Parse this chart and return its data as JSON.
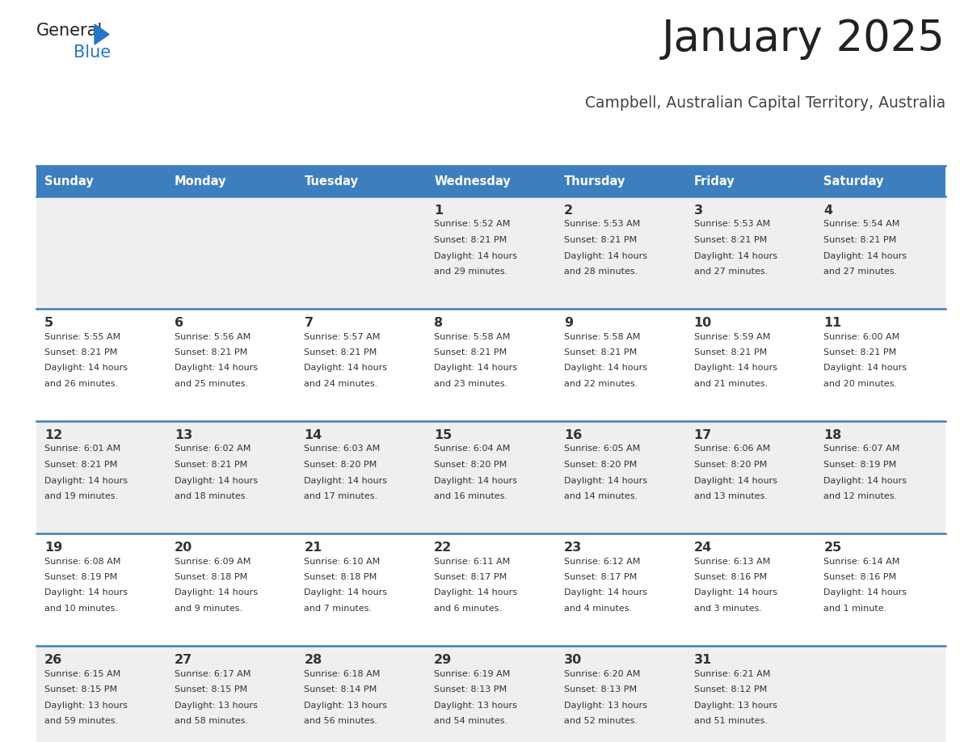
{
  "title": "January 2025",
  "subtitle": "Campbell, Australian Capital Territory, Australia",
  "header_bg": "#3d7ebf",
  "header_text": "#ffffff",
  "row_bg_odd": "#efefef",
  "row_bg_even": "#ffffff",
  "cell_text": "#333333",
  "days_of_week": [
    "Sunday",
    "Monday",
    "Tuesday",
    "Wednesday",
    "Thursday",
    "Friday",
    "Saturday"
  ],
  "weeks": [
    [
      {
        "day": "",
        "sunrise": "",
        "sunset": "",
        "daylight": ""
      },
      {
        "day": "",
        "sunrise": "",
        "sunset": "",
        "daylight": ""
      },
      {
        "day": "",
        "sunrise": "",
        "sunset": "",
        "daylight": ""
      },
      {
        "day": "1",
        "sunrise": "5:52 AM",
        "sunset": "8:21 PM",
        "daylight": "14 hours and 29 minutes."
      },
      {
        "day": "2",
        "sunrise": "5:53 AM",
        "sunset": "8:21 PM",
        "daylight": "14 hours and 28 minutes."
      },
      {
        "day": "3",
        "sunrise": "5:53 AM",
        "sunset": "8:21 PM",
        "daylight": "14 hours and 27 minutes."
      },
      {
        "day": "4",
        "sunrise": "5:54 AM",
        "sunset": "8:21 PM",
        "daylight": "14 hours and 27 minutes."
      }
    ],
    [
      {
        "day": "5",
        "sunrise": "5:55 AM",
        "sunset": "8:21 PM",
        "daylight": "14 hours and 26 minutes."
      },
      {
        "day": "6",
        "sunrise": "5:56 AM",
        "sunset": "8:21 PM",
        "daylight": "14 hours and 25 minutes."
      },
      {
        "day": "7",
        "sunrise": "5:57 AM",
        "sunset": "8:21 PM",
        "daylight": "14 hours and 24 minutes."
      },
      {
        "day": "8",
        "sunrise": "5:58 AM",
        "sunset": "8:21 PM",
        "daylight": "14 hours and 23 minutes."
      },
      {
        "day": "9",
        "sunrise": "5:58 AM",
        "sunset": "8:21 PM",
        "daylight": "14 hours and 22 minutes."
      },
      {
        "day": "10",
        "sunrise": "5:59 AM",
        "sunset": "8:21 PM",
        "daylight": "14 hours and 21 minutes."
      },
      {
        "day": "11",
        "sunrise": "6:00 AM",
        "sunset": "8:21 PM",
        "daylight": "14 hours and 20 minutes."
      }
    ],
    [
      {
        "day": "12",
        "sunrise": "6:01 AM",
        "sunset": "8:21 PM",
        "daylight": "14 hours and 19 minutes."
      },
      {
        "day": "13",
        "sunrise": "6:02 AM",
        "sunset": "8:21 PM",
        "daylight": "14 hours and 18 minutes."
      },
      {
        "day": "14",
        "sunrise": "6:03 AM",
        "sunset": "8:20 PM",
        "daylight": "14 hours and 17 minutes."
      },
      {
        "day": "15",
        "sunrise": "6:04 AM",
        "sunset": "8:20 PM",
        "daylight": "14 hours and 16 minutes."
      },
      {
        "day": "16",
        "sunrise": "6:05 AM",
        "sunset": "8:20 PM",
        "daylight": "14 hours and 14 minutes."
      },
      {
        "day": "17",
        "sunrise": "6:06 AM",
        "sunset": "8:20 PM",
        "daylight": "14 hours and 13 minutes."
      },
      {
        "day": "18",
        "sunrise": "6:07 AM",
        "sunset": "8:19 PM",
        "daylight": "14 hours and 12 minutes."
      }
    ],
    [
      {
        "day": "19",
        "sunrise": "6:08 AM",
        "sunset": "8:19 PM",
        "daylight": "14 hours and 10 minutes."
      },
      {
        "day": "20",
        "sunrise": "6:09 AM",
        "sunset": "8:18 PM",
        "daylight": "14 hours and 9 minutes."
      },
      {
        "day": "21",
        "sunrise": "6:10 AM",
        "sunset": "8:18 PM",
        "daylight": "14 hours and 7 minutes."
      },
      {
        "day": "22",
        "sunrise": "6:11 AM",
        "sunset": "8:17 PM",
        "daylight": "14 hours and 6 minutes."
      },
      {
        "day": "23",
        "sunrise": "6:12 AM",
        "sunset": "8:17 PM",
        "daylight": "14 hours and 4 minutes."
      },
      {
        "day": "24",
        "sunrise": "6:13 AM",
        "sunset": "8:16 PM",
        "daylight": "14 hours and 3 minutes."
      },
      {
        "day": "25",
        "sunrise": "6:14 AM",
        "sunset": "8:16 PM",
        "daylight": "14 hours and 1 minute."
      }
    ],
    [
      {
        "day": "26",
        "sunrise": "6:15 AM",
        "sunset": "8:15 PM",
        "daylight": "13 hours and 59 minutes."
      },
      {
        "day": "27",
        "sunrise": "6:17 AM",
        "sunset": "8:15 PM",
        "daylight": "13 hours and 58 minutes."
      },
      {
        "day": "28",
        "sunrise": "6:18 AM",
        "sunset": "8:14 PM",
        "daylight": "13 hours and 56 minutes."
      },
      {
        "day": "29",
        "sunrise": "6:19 AM",
        "sunset": "8:13 PM",
        "daylight": "13 hours and 54 minutes."
      },
      {
        "day": "30",
        "sunrise": "6:20 AM",
        "sunset": "8:13 PM",
        "daylight": "13 hours and 52 minutes."
      },
      {
        "day": "31",
        "sunrise": "6:21 AM",
        "sunset": "8:12 PM",
        "daylight": "13 hours and 51 minutes."
      },
      {
        "day": "",
        "sunrise": "",
        "sunset": "",
        "daylight": ""
      }
    ]
  ],
  "logo_text_general": "General",
  "logo_text_blue": "Blue",
  "logo_color_general": "#222222",
  "logo_color_blue": "#2277cc",
  "logo_triangle_color": "#2277cc",
  "divider_color": "#3d7ebf",
  "title_color": "#222222",
  "subtitle_color": "#444444",
  "fig_width": 11.88,
  "fig_height": 9.18,
  "dpi": 100
}
